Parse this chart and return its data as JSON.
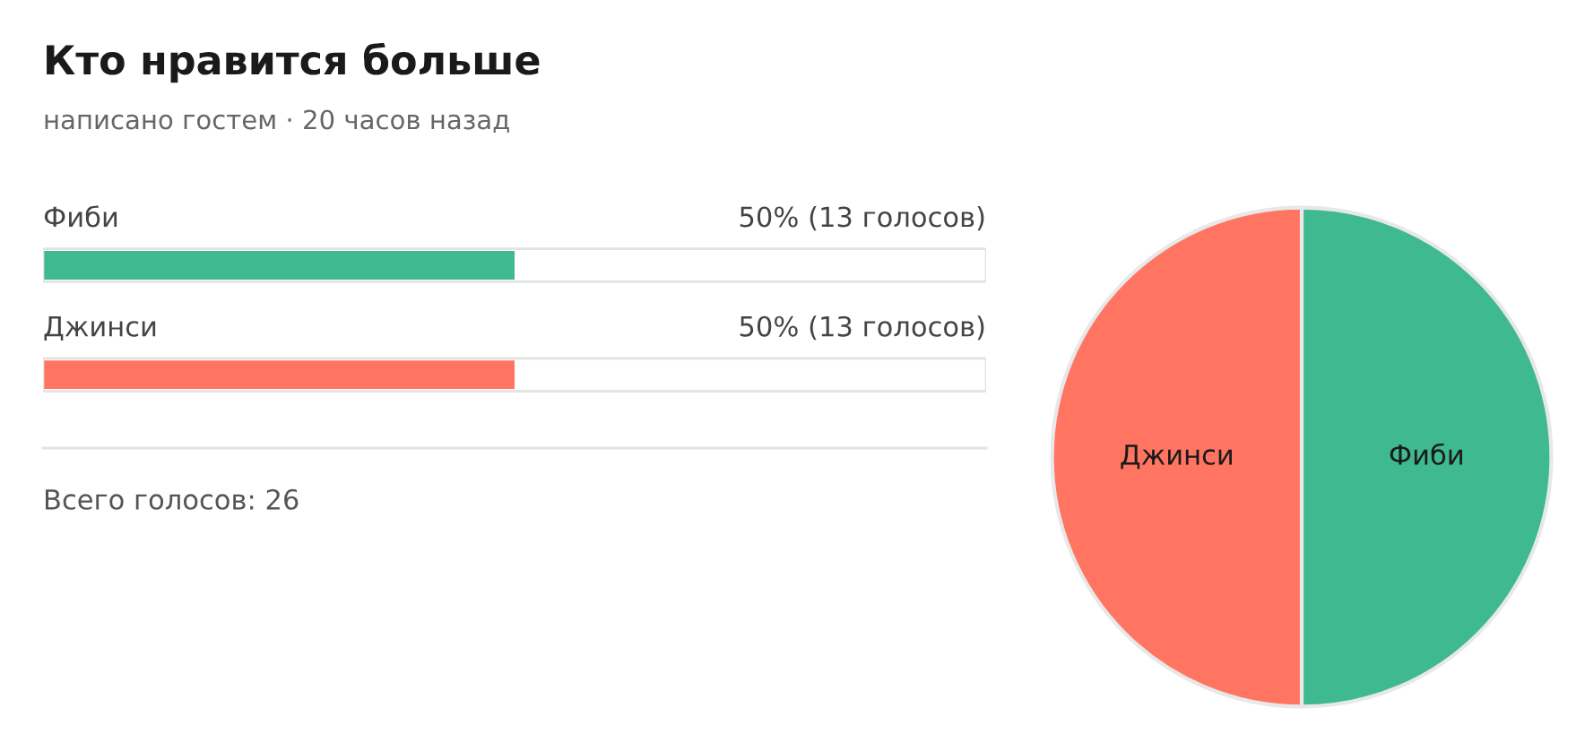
{
  "chart_data": [
    {
      "type": "bar",
      "orientation": "horizontal",
      "title": "Кто нравится больше",
      "subtitle": "написано гостем · 20 часов назад",
      "categories": [
        "Фиби",
        "Джинси"
      ],
      "values": [
        50,
        50
      ],
      "colors": [
        "#3fb990",
        "#ff7562"
      ],
      "value_labels": [
        "50% (13 голосов)",
        "50% (13 голосов)"
      ],
      "tick_labels": false,
      "annotations": [
        "Всего голосов: 26"
      ]
    },
    {
      "type": "pie",
      "categories": [
        "Фиби",
        "Джинси"
      ],
      "values": [
        50,
        50
      ],
      "colors": [
        "#3fb990",
        "#ff7562"
      ]
    }
  ]
}
